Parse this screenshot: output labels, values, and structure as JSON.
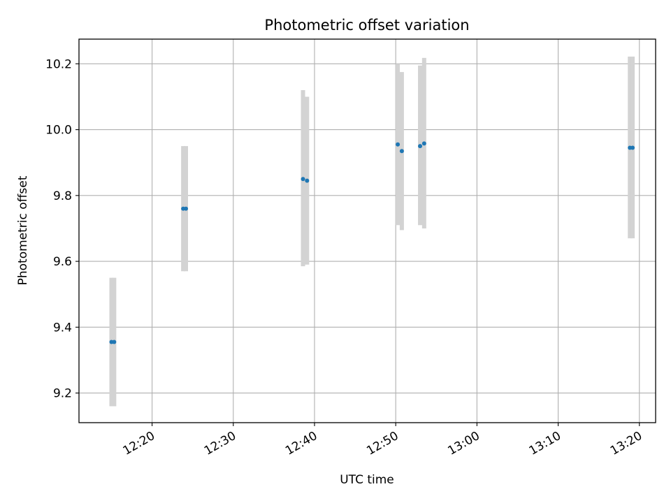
{
  "chart_data": {
    "type": "scatter",
    "title": "Photometric offset variation",
    "xlabel": "UTC time",
    "ylabel": "Photometric offset",
    "x_ticks": [
      "12:20",
      "12:30",
      "12:40",
      "12:50",
      "13:00",
      "13:10",
      "13:20"
    ],
    "y_ticks": [
      "9.2",
      "9.4",
      "9.6",
      "9.8",
      "10.0",
      "10.2"
    ],
    "xlim": [
      "12:11",
      "13:22"
    ],
    "ylim": [
      9.11,
      10.275
    ],
    "grid": true,
    "marker_color": "#1f77b4",
    "errorbar_color": "#d3d3d3",
    "points": [
      {
        "x": "12:15:00",
        "y": 9.355,
        "ylow": 9.16,
        "yhigh": 9.55
      },
      {
        "x": "12:15:20",
        "y": 9.355,
        "ylow": 9.16,
        "yhigh": 9.55
      },
      {
        "x": "12:23:50",
        "y": 9.76,
        "ylow": 9.57,
        "yhigh": 9.95
      },
      {
        "x": "12:24:10",
        "y": 9.76,
        "ylow": 9.57,
        "yhigh": 9.95
      },
      {
        "x": "12:38:35",
        "y": 9.85,
        "ylow": 9.585,
        "yhigh": 10.12
      },
      {
        "x": "12:39:05",
        "y": 9.845,
        "ylow": 9.59,
        "yhigh": 10.1
      },
      {
        "x": "12:50:15",
        "y": 9.955,
        "ylow": 9.71,
        "yhigh": 10.2
      },
      {
        "x": "12:50:45",
        "y": 9.935,
        "ylow": 9.695,
        "yhigh": 10.175
      },
      {
        "x": "12:53:00",
        "y": 9.95,
        "ylow": 9.71,
        "yhigh": 10.195
      },
      {
        "x": "12:53:30",
        "y": 9.958,
        "ylow": 9.7,
        "yhigh": 10.218
      },
      {
        "x": "13:18:50",
        "y": 9.945,
        "ylow": 9.67,
        "yhigh": 10.222
      },
      {
        "x": "13:19:10",
        "y": 9.945,
        "ylow": 9.67,
        "yhigh": 10.222
      }
    ]
  }
}
